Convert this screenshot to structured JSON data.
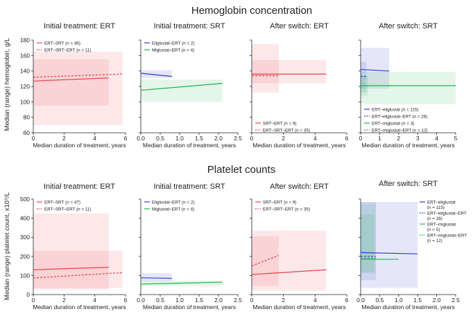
{
  "sections": {
    "hemoglobin": {
      "title": "Hemoglobin concentration",
      "ylabel": "Median (range) hemoglobin, g/L"
    },
    "platelet": {
      "title": "Platelet counts",
      "ylabel": "Median (range) platelet count, x10⁹/L"
    }
  },
  "colors": {
    "red": "#e8414a",
    "blue": "#2b3dcc",
    "green": "#1fb14a"
  },
  "chart_data": [
    {
      "id": "hb-ert",
      "section": "hemoglobin",
      "type": "line",
      "title": "Initial treatment: ERT",
      "xlabel": "Median duration of treatment, years",
      "xlim": [
        0,
        6
      ],
      "xticks": [
        0,
        2,
        4,
        6
      ],
      "xtick_labels": [
        "0",
        "2",
        "4",
        "6"
      ],
      "ylim": [
        60,
        180
      ],
      "yticks": [
        60,
        80,
        100,
        120,
        140,
        160,
        180
      ],
      "ytick_labels": [
        "60",
        "80",
        "100",
        "120",
        "140",
        "160",
        "180"
      ],
      "legend": "top-left",
      "series": [
        {
          "name": "ERT–SRT (n = 46)",
          "color": "#e8414a",
          "dashed": false,
          "x": [
            0,
            4.9
          ],
          "y": [
            127,
            131
          ],
          "range": {
            "x": [
              0,
              4.9
            ],
            "y": [
              95,
              155
            ]
          }
        },
        {
          "name": "ERT–SRT–ERT (n = 11)",
          "color": "#e8414a",
          "dashed": true,
          "x": [
            0,
            5.8
          ],
          "y": [
            132,
            136
          ],
          "range": {
            "x": [
              0,
              5.8
            ],
            "y": [
              70,
              165
            ]
          }
        }
      ]
    },
    {
      "id": "hb-srt",
      "section": "hemoglobin",
      "type": "line",
      "title": "Initial treatment: SRT",
      "xlabel": "Median duration of treatment, years",
      "xlim": [
        0,
        2.5
      ],
      "xticks": [
        0,
        0.5,
        1,
        1.5,
        2,
        2.5
      ],
      "xtick_labels": [
        "0.0",
        "0.5",
        "1.0",
        "1.5",
        "2.0",
        "2.5"
      ],
      "ylim": [
        60,
        180
      ],
      "yticks": [
        60,
        80,
        100,
        120,
        140,
        160,
        180
      ],
      "ytick_labels": [],
      "legend": "top-left",
      "series": [
        {
          "name": "Eliglustat–ERT (n = 2)",
          "color": "#2b3dcc",
          "dashed": false,
          "x": [
            0,
            0.8
          ],
          "y": [
            137,
            133
          ],
          "range": {
            "x": [
              0,
              0.8
            ],
            "y": [
              131,
              141
            ]
          }
        },
        {
          "name": "Miglustat–ERT (n = 4)",
          "color": "#1fb14a",
          "dashed": false,
          "x": [
            0,
            2.1
          ],
          "y": [
            115,
            124
          ],
          "range": {
            "x": [
              0,
              2.1
            ],
            "y": [
              100,
              129
            ]
          }
        }
      ]
    },
    {
      "id": "hb-after-ert",
      "section": "hemoglobin",
      "type": "line",
      "title": "After switch: ERT",
      "xlabel": "Median duration of treatment, years",
      "xlim": [
        0,
        6
      ],
      "xticks": [
        0,
        2,
        4,
        6
      ],
      "xtick_labels": [
        "0",
        "2",
        "4",
        "6"
      ],
      "ylim": [
        60,
        180
      ],
      "yticks": [
        60,
        80,
        100,
        120,
        140,
        160,
        180
      ],
      "ytick_labels": [],
      "legend": "bottom-left",
      "series": [
        {
          "name": "SRT–ERT (n = 9)",
          "color": "#e8414a",
          "dashed": false,
          "x": [
            0,
            4.7
          ],
          "y": [
            136,
            136
          ],
          "range": {
            "x": [
              0,
              4.7
            ],
            "y": [
              124,
              154
            ]
          }
        },
        {
          "name": "ERT–SRT–ERT (n = 35)",
          "color": "#e8414a",
          "dashed": true,
          "x": [
            0,
            1.7
          ],
          "y": [
            134,
            134
          ],
          "range": {
            "x": [
              0,
              1.7
            ],
            "y": [
              112,
              175
            ]
          }
        }
      ]
    },
    {
      "id": "hb-after-srt",
      "section": "hemoglobin",
      "type": "line",
      "title": "After switch: SRT",
      "xlabel": "Median duration of treatment, years",
      "xlim": [
        0,
        5
      ],
      "xticks": [
        0,
        1,
        2,
        3,
        4,
        5
      ],
      "xtick_labels": [
        "0",
        "1",
        "2",
        "3",
        "4",
        "5"
      ],
      "ylim": [
        60,
        180
      ],
      "yticks": [
        60,
        80,
        100,
        120,
        140,
        160,
        180
      ],
      "ytick_labels": [],
      "legend": "bottom-left",
      "series": [
        {
          "name": "ERT–eliglustat (n = 115)",
          "color": "#2b3dcc",
          "dashed": false,
          "x": [
            0,
            1.5
          ],
          "y": [
            142,
            140
          ],
          "range": {
            "x": [
              0,
              1.5
            ],
            "y": [
              117,
              170
            ]
          }
        },
        {
          "name": "ERT–eliglustat–ERT (n = 26)",
          "color": "#2b3dcc",
          "dashed": true,
          "x": [
            0,
            0.3
          ],
          "y": [
            133,
            133
          ],
          "range": {
            "x": [
              0,
              0.3
            ],
            "y": [
              112,
              152
            ]
          }
        },
        {
          "name": "ERT–miglustat (n = 3)",
          "color": "#1fb14a",
          "dashed": false,
          "x": [
            0,
            5
          ],
          "y": [
            121,
            121
          ],
          "range": {
            "x": [
              0,
              5
            ],
            "y": [
              97,
              139
            ]
          }
        },
        {
          "name": "ERT–miglustat–ERT (n = 12)",
          "color": "#1fb14a",
          "dashed": true,
          "x": [
            0,
            0.4
          ],
          "y": [
            121,
            121
          ],
          "range": {
            "x": [
              0,
              0.4
            ],
            "y": [
              108,
              134
            ]
          }
        }
      ]
    },
    {
      "id": "pl-ert",
      "section": "platelet",
      "type": "line",
      "title": "Initial treatment: ERT",
      "xlabel": "Median duration of treatment, years",
      "xlim": [
        0,
        6
      ],
      "xticks": [
        0,
        2,
        4,
        6
      ],
      "xtick_labels": [
        "0",
        "2",
        "4",
        "6"
      ],
      "ylim": [
        0,
        500
      ],
      "yticks": [
        0,
        100,
        200,
        300,
        400,
        500
      ],
      "ytick_labels": [
        "0",
        "100",
        "200",
        "300",
        "400",
        "500"
      ],
      "legend": "top-left",
      "series": [
        {
          "name": "ERT–SRT (n = 47)",
          "color": "#e8414a",
          "dashed": false,
          "x": [
            0,
            4.9
          ],
          "y": [
            130,
            143
          ],
          "range": {
            "x": [
              0,
              4.9
            ],
            "y": [
              25,
              425
            ]
          }
        },
        {
          "name": "ERT–SRT–ERT (n = 11)",
          "color": "#e8414a",
          "dashed": true,
          "x": [
            0,
            5.8
          ],
          "y": [
            87,
            115
          ],
          "range": {
            "x": [
              0,
              5.8
            ],
            "y": [
              35,
              230
            ]
          }
        }
      ]
    },
    {
      "id": "pl-srt",
      "section": "platelet",
      "type": "line",
      "title": "Initial treatment: SRT",
      "xlabel": "Median duration of treatment, years",
      "xlim": [
        0,
        2.5
      ],
      "xticks": [
        0,
        0.5,
        1,
        1.5,
        2,
        2.5
      ],
      "xtick_labels": [
        "0.0",
        "0.5",
        "1.0",
        "1.5",
        "2.0",
        "2.5"
      ],
      "ylim": [
        0,
        500
      ],
      "yticks": [
        0,
        100,
        200,
        300,
        400,
        500
      ],
      "ytick_labels": [],
      "legend": "top-left",
      "series": [
        {
          "name": "Eliglustat–ERT (n = 2)",
          "color": "#2b3dcc",
          "dashed": false,
          "x": [
            0,
            0.8
          ],
          "y": [
            88,
            85
          ],
          "range": {
            "x": [
              0,
              0.8
            ],
            "y": [
              70,
              112
            ]
          }
        },
        {
          "name": "Miglustat–ERT (n = 4)",
          "color": "#1fb14a",
          "dashed": false,
          "x": [
            0,
            2.1
          ],
          "y": [
            55,
            65
          ],
          "range": {
            "x": [
              0,
              2.1
            ],
            "y": [
              45,
              73
            ]
          }
        }
      ]
    },
    {
      "id": "pl-after-ert",
      "section": "platelet",
      "type": "line",
      "title": "After switch: ERT",
      "xlabel": "Median duration of treatment, years",
      "xlim": [
        0,
        6
      ],
      "xticks": [
        0,
        2,
        4,
        6
      ],
      "xtick_labels": [
        "0",
        "2",
        "4",
        "6"
      ],
      "ylim": [
        0,
        500
      ],
      "yticks": [
        0,
        100,
        200,
        300,
        400,
        500
      ],
      "ytick_labels": [],
      "legend": "top-left",
      "series": [
        {
          "name": "SRT–ERT (n = 9)",
          "color": "#e8414a",
          "dashed": false,
          "x": [
            0,
            4.7
          ],
          "y": [
            105,
            130
          ],
          "range": {
            "x": [
              0,
              4.7
            ],
            "y": [
              20,
              335
            ]
          }
        },
        {
          "name": "ERT–SRT–ERT (n = 35)",
          "color": "#e8414a",
          "dashed": true,
          "x": [
            0,
            1.7
          ],
          "y": [
            150,
            205
          ],
          "range": {
            "x": [
              0,
              1.7
            ],
            "y": [
              45,
              305
            ]
          }
        }
      ]
    },
    {
      "id": "pl-after-srt",
      "section": "platelet",
      "type": "line",
      "title": "After switch: SRT",
      "xlabel": "Median duration of treatment, years",
      "xlim": [
        0,
        2.5
      ],
      "xticks": [
        0,
        0.5,
        1,
        1.5,
        2,
        2.5
      ],
      "xtick_labels": [
        "0.0",
        "0.5",
        "1.0",
        "1.5",
        "2.0",
        "2.5"
      ],
      "ylim": [
        0,
        500
      ],
      "yticks": [
        0,
        100,
        200,
        300,
        400,
        500
      ],
      "ytick_labels": [],
      "legend": "right",
      "series": [
        {
          "name": "ERT–eliglustat (n = 115)",
          "color": "#2b3dcc",
          "dashed": false,
          "x": [
            0,
            1.5
          ],
          "y": [
            220,
            213
          ],
          "range": {
            "x": [
              0,
              1.5
            ],
            "y": [
              35,
              485
            ]
          }
        },
        {
          "name": "ERT–eliglustat–ERT (n = 26)",
          "color": "#2b3dcc",
          "dashed": true,
          "x": [
            0,
            0.4
          ],
          "y": [
            200,
            200
          ],
          "range": {
            "x": [
              0,
              0.4
            ],
            "y": [
              75,
              485
            ]
          }
        },
        {
          "name": "ERT–miglustat (n = 5)",
          "color": "#1fb14a",
          "dashed": false,
          "x": [
            0,
            1.0
          ],
          "y": [
            185,
            185
          ],
          "range": {
            "x": [
              0,
              0.4
            ],
            "y": [
              110,
              475
            ]
          }
        },
        {
          "name": "ERT–miglustat–ERT (n = 12)",
          "color": "#1fb14a",
          "dashed": true,
          "x": [
            0,
            0.4
          ],
          "y": [
            190,
            190
          ],
          "range": {
            "x": [
              0,
              0.35
            ],
            "y": [
              120,
              420
            ]
          }
        }
      ]
    }
  ]
}
